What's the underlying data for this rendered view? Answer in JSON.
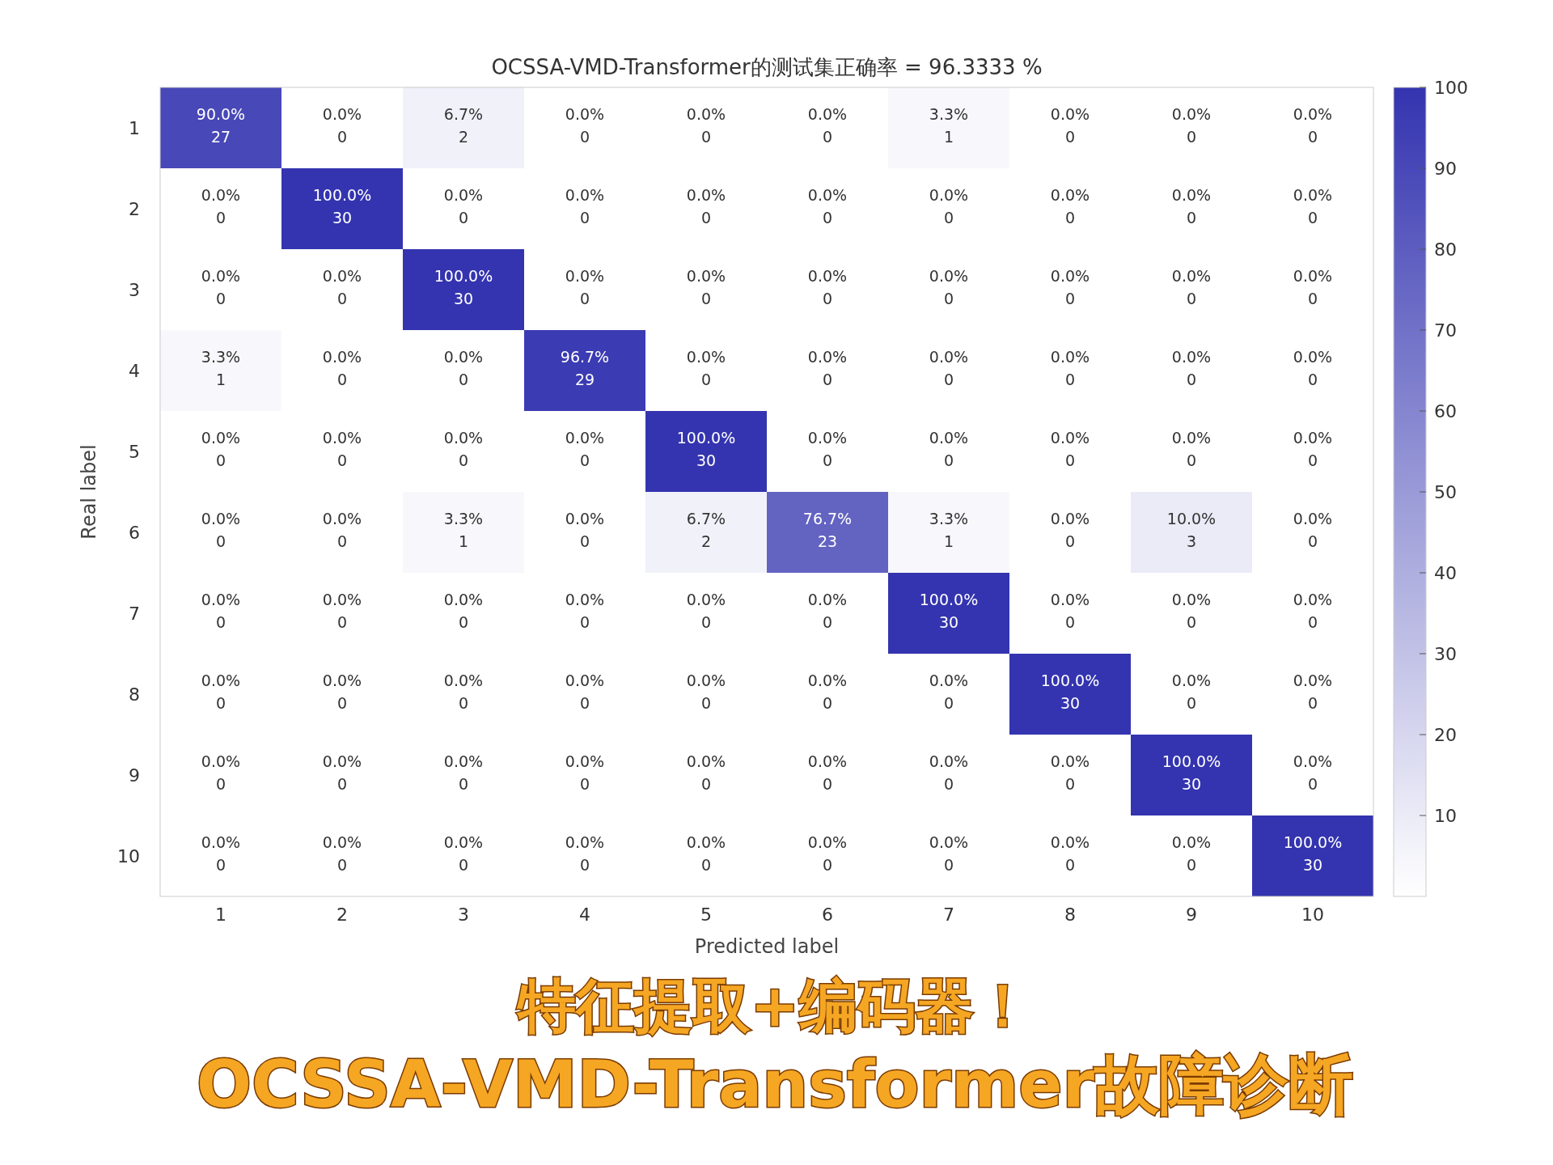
{
  "chart_data": {
    "type": "heatmap",
    "title": "OCSSA-VMD-Transformer的测试集正确率 = 96.3333 %",
    "xlabel": "Predicted label",
    "ylabel": "Real label",
    "categories": [
      "1",
      "2",
      "3",
      "4",
      "5",
      "6",
      "7",
      "8",
      "9",
      "10"
    ],
    "y_categories": [
      "1",
      "2",
      "3",
      "4",
      "5",
      "6",
      "7",
      "8",
      "9",
      "10"
    ],
    "cells": [
      [
        90.0,
        0,
        6.7,
        0,
        0,
        0,
        3.3,
        0,
        0,
        0
      ],
      [
        0,
        100.0,
        0,
        0,
        0,
        0,
        0,
        0,
        0,
        0
      ],
      [
        0,
        0,
        100.0,
        0,
        0,
        0,
        0,
        0,
        0,
        0
      ],
      [
        3.3,
        0,
        0,
        96.7,
        0,
        0,
        0,
        0,
        0,
        0
      ],
      [
        0,
        0,
        0,
        0,
        100.0,
        0,
        0,
        0,
        0,
        0
      ],
      [
        0,
        0,
        3.3,
        0,
        6.7,
        76.7,
        3.3,
        0,
        10.0,
        0
      ],
      [
        0,
        0,
        0,
        0,
        0,
        0,
        100.0,
        0,
        0,
        0
      ],
      [
        0,
        0,
        0,
        0,
        0,
        0,
        0,
        100.0,
        0,
        0
      ],
      [
        0,
        0,
        0,
        0,
        0,
        0,
        0,
        0,
        100.0,
        0
      ],
      [
        0,
        0,
        0,
        0,
        0,
        0,
        0,
        0,
        0,
        100.0
      ]
    ],
    "cell_labels": [
      [
        "90.0%\n27",
        "0.0%\n0",
        "6.7%\n2",
        "0.0%\n0",
        "0.0%\n0",
        "0.0%\n0",
        "3.3%\n1",
        "0.0%\n0",
        "0.0%\n0",
        "0.0%\n0"
      ],
      [
        "0.0%\n0",
        "100.0%\n30",
        "0.0%\n0",
        "0.0%\n0",
        "0.0%\n0",
        "0.0%\n0",
        "0.0%\n0",
        "0.0%\n0",
        "0.0%\n0",
        "0.0%\n0"
      ],
      [
        "0.0%\n0",
        "0.0%\n0",
        "100.0%\n30",
        "0.0%\n0",
        "0.0%\n0",
        "0.0%\n0",
        "0.0%\n0",
        "0.0%\n0",
        "0.0%\n0",
        "0.0%\n0"
      ],
      [
        "3.3%\n1",
        "0.0%\n0",
        "0.0%\n0",
        "96.7%\n29",
        "0.0%\n0",
        "0.0%\n0",
        "0.0%\n0",
        "0.0%\n0",
        "0.0%\n0",
        "0.0%\n0"
      ],
      [
        "0.0%\n0",
        "0.0%\n0",
        "0.0%\n0",
        "0.0%\n0",
        "100.0%\n30",
        "0.0%\n0",
        "0.0%\n0",
        "0.0%\n0",
        "0.0%\n0",
        "0.0%\n0"
      ],
      [
        "0.0%\n0",
        "0.0%\n0",
        "3.3%\n1",
        "0.0%\n0",
        "6.7%\n2",
        "76.7%\n23",
        "3.3%\n1",
        "0.0%\n0",
        "10.0%\n3",
        "0.0%\n0"
      ],
      [
        "0.0%\n0",
        "0.0%\n0",
        "0.0%\n0",
        "0.0%\n0",
        "0.0%\n0",
        "0.0%\n0",
        "100.0%\n30",
        "0.0%\n0",
        "0.0%\n0",
        "0.0%\n0"
      ],
      [
        "0.0%\n0",
        "0.0%\n0",
        "0.0%\n0",
        "0.0%\n0",
        "0.0%\n0",
        "0.0%\n0",
        "0.0%\n0",
        "100.0%\n30",
        "0.0%\n0",
        "0.0%\n0"
      ],
      [
        "0.0%\n0",
        "0.0%\n0",
        "0.0%\n0",
        "0.0%\n0",
        "0.0%\n0",
        "0.0%\n0",
        "0.0%\n0",
        "0.0%\n0",
        "100.0%\n30",
        "0.0%\n0"
      ],
      [
        "0.0%\n0",
        "0.0%\n0",
        "0.0%\n0",
        "0.0%\n0",
        "0.0%\n0",
        "0.0%\n0",
        "0.0%\n0",
        "0.0%\n0",
        "0.0%\n0",
        "100.0%\n30"
      ]
    ],
    "clim": [
      0,
      100
    ],
    "cticks": [
      10,
      20,
      30,
      40,
      50,
      60,
      70,
      80,
      90,
      100
    ],
    "annotations": [
      "特征提取+编码器！",
      "OCSSA-VMD-Transformer故障诊断"
    ]
  }
}
